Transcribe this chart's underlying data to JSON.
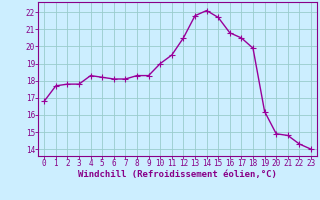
{
  "x": [
    0,
    1,
    2,
    3,
    4,
    5,
    6,
    7,
    8,
    9,
    10,
    11,
    12,
    13,
    14,
    15,
    16,
    17,
    18,
    19,
    20,
    21,
    22,
    23
  ],
  "y": [
    16.8,
    17.7,
    17.8,
    17.8,
    18.3,
    18.2,
    18.1,
    18.1,
    18.3,
    18.3,
    19.0,
    19.5,
    20.5,
    21.8,
    22.1,
    21.7,
    20.8,
    20.5,
    19.9,
    16.2,
    14.9,
    14.8,
    14.3,
    14.0
  ],
  "line_color": "#990099",
  "marker": "+",
  "marker_size": 4,
  "bg_color": "#cceeff",
  "grid_color": "#99cccc",
  "xlabel": "Windchill (Refroidissement éolien,°C)",
  "yticks": [
    14,
    15,
    16,
    17,
    18,
    19,
    20,
    21,
    22
  ],
  "xticks": [
    0,
    1,
    2,
    3,
    4,
    5,
    6,
    7,
    8,
    9,
    10,
    11,
    12,
    13,
    14,
    15,
    16,
    17,
    18,
    19,
    20,
    21,
    22,
    23
  ],
  "ylim": [
    13.6,
    22.6
  ],
  "xlim": [
    -0.5,
    23.5
  ],
  "tick_fontsize": 5.5,
  "xlabel_fontsize": 6.5,
  "line_width": 1.0
}
